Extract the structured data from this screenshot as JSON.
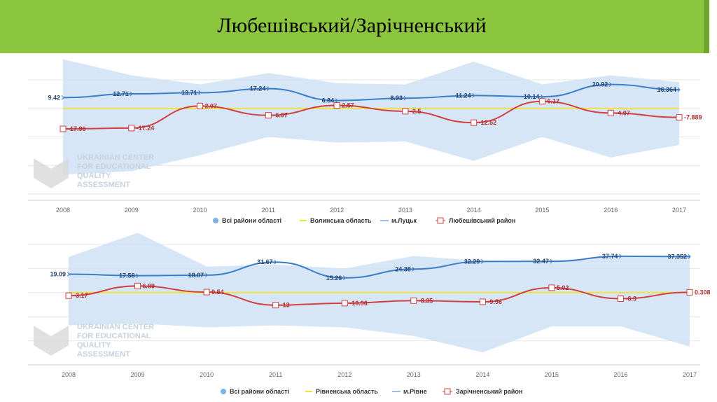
{
  "title": "Любешівський/Зарічненський",
  "chart_data": [
    {
      "type": "line",
      "categories": [
        "2008",
        "2009",
        "2010",
        "2011",
        "2012",
        "2013",
        "2014",
        "2015",
        "2016",
        "2017"
      ],
      "ylim": [
        -75,
        25
      ],
      "yticks": [
        "25",
        "0",
        "-25",
        "-50",
        "-75"
      ],
      "series": [
        {
          "name": "Всі райони області",
          "type": "range",
          "upper": [
            43,
            29,
            21,
            31,
            22,
            21,
            41,
            21,
            29,
            23
          ],
          "lower": [
            -58,
            -55,
            -41,
            -25,
            -30,
            -29,
            -46,
            -25,
            -43,
            -32
          ]
        },
        {
          "name": "Волинська область",
          "values": [
            0,
            0,
            0,
            0,
            0,
            0,
            0,
            0,
            0,
            0
          ]
        },
        {
          "name": "м.Луцьк",
          "values": [
            9.42,
            12.71,
            13.71,
            17.24,
            6.84,
            8.93,
            11.24,
            10.14,
            20.92,
            16.364
          ]
        },
        {
          "name": "Любешівський район",
          "values": [
            -17.96,
            -17.24,
            2.07,
            -6.07,
            2.57,
            -2.5,
            -12.52,
            6.17,
            -4.07,
            -7.889
          ]
        }
      ]
    },
    {
      "type": "line",
      "categories": [
        "2008",
        "2009",
        "2010",
        "2011",
        "2012",
        "2013",
        "2014",
        "2015",
        "2016",
        "2017"
      ],
      "ylim": [
        -75,
        50
      ],
      "yticks": [
        "50",
        "25",
        "0",
        "-25",
        "-50",
        "-75"
      ],
      "series": [
        {
          "name": "Всі райони області",
          "type": "range",
          "upper": [
            37,
            62,
            27,
            29,
            25,
            38,
            33,
            33,
            38,
            38
          ],
          "lower": [
            -34,
            -32,
            -36,
            -34,
            -36,
            -45,
            -62,
            -35,
            -35,
            -56
          ]
        },
        {
          "name": "Рівненська область",
          "values": [
            0,
            0,
            0,
            0,
            0,
            0,
            0,
            0,
            0,
            0
          ]
        },
        {
          "name": "м.Рівне",
          "values": [
            19.09,
            17.58,
            18.07,
            31.67,
            15.26,
            24.38,
            32.29,
            32.47,
            37.74,
            37.352
          ]
        },
        {
          "name": "Зарічненський район",
          "values": [
            -3.17,
            6.89,
            0.54,
            -13,
            -10.96,
            -8.35,
            -9.56,
            5.02,
            -6.3,
            0.308
          ]
        }
      ]
    }
  ],
  "watermark": [
    "UKRAINIAN CENTER",
    "FOR EDUCATIONAL",
    "QUALITY",
    "ASSESSMENT"
  ],
  "colors": {
    "band": "#cfe2f6",
    "flat": "#f0e040",
    "city": "#3a7dc9",
    "district": "#d04040"
  }
}
